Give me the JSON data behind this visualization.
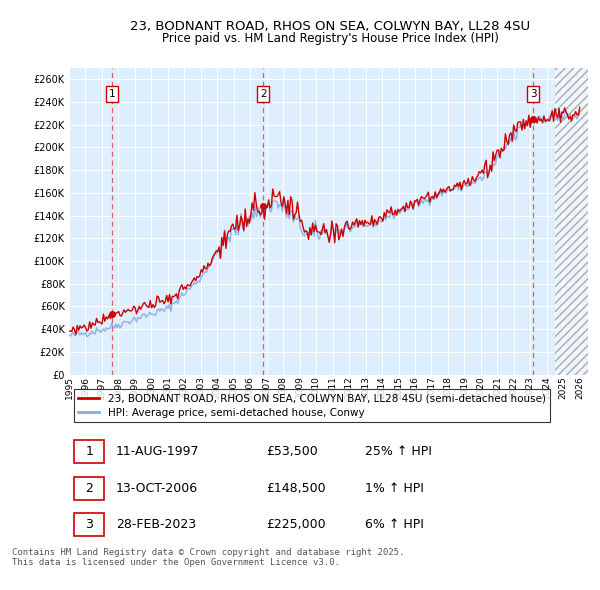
{
  "title_line1": "23, BODNANT ROAD, RHOS ON SEA, COLWYN BAY, LL28 4SU",
  "title_line2": "Price paid vs. HM Land Registry's House Price Index (HPI)",
  "ylim": [
    0,
    270000
  ],
  "xlim_start": 1995.0,
  "xlim_end": 2026.5,
  "yticks": [
    0,
    20000,
    40000,
    60000,
    80000,
    100000,
    120000,
    140000,
    160000,
    180000,
    200000,
    220000,
    240000,
    260000
  ],
  "ytick_labels": [
    "£0",
    "£20K",
    "£40K",
    "£60K",
    "£80K",
    "£100K",
    "£120K",
    "£140K",
    "£160K",
    "£180K",
    "£200K",
    "£220K",
    "£240K",
    "£260K"
  ],
  "xtick_years": [
    1995,
    1996,
    1997,
    1998,
    1999,
    2000,
    2001,
    2002,
    2003,
    2004,
    2005,
    2006,
    2007,
    2008,
    2009,
    2010,
    2011,
    2012,
    2013,
    2014,
    2015,
    2016,
    2017,
    2018,
    2019,
    2020,
    2021,
    2022,
    2023,
    2024,
    2025,
    2026
  ],
  "sale1_year": 1997.614,
  "sale1_price": 53500,
  "sale2_year": 2006.786,
  "sale2_price": 148500,
  "sale3_year": 2023.162,
  "sale3_price": 225000,
  "red_line_color": "#cc0000",
  "blue_line_color": "#88aadd",
  "bg_color": "#ddeeff",
  "grid_color": "#ffffff",
  "sale_dot_color": "#cc0000",
  "dashed_line_color": "#dd4444",
  "legend_label1": "23, BODNANT ROAD, RHOS ON SEA, COLWYN BAY, LL28 4SU (semi-detached house)",
  "legend_label2": "HPI: Average price, semi-detached house, Conwy",
  "table_entries": [
    {
      "num": 1,
      "date": "11-AUG-1997",
      "price": "£53,500",
      "change": "25% ↑ HPI"
    },
    {
      "num": 2,
      "date": "13-OCT-2006",
      "price": "£148,500",
      "change": "1% ↑ HPI"
    },
    {
      "num": 3,
      "date": "28-FEB-2023",
      "price": "£225,000",
      "change": "6% ↑ HPI"
    }
  ],
  "footer": "Contains HM Land Registry data © Crown copyright and database right 2025.\nThis data is licensed under the Open Government Licence v3.0."
}
